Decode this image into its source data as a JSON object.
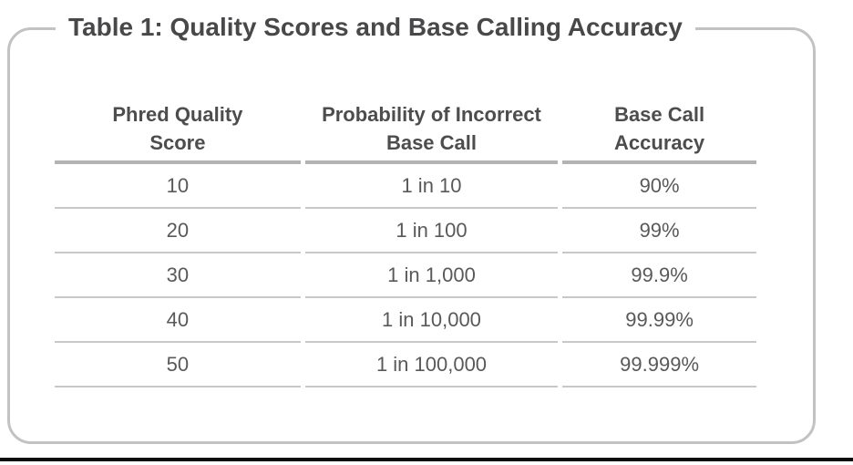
{
  "title": "Table 1: Quality Scores and Base Calling Accuracy",
  "chart_data": {
    "type": "table",
    "title": "Table 1: Quality Scores and Base Calling Accuracy",
    "columns": [
      "Phred Quality Score",
      "Probability of Incorrect Base Call",
      "Base Call Accuracy"
    ],
    "rows": [
      [
        "10",
        "1 in 10",
        "90%"
      ],
      [
        "20",
        "1 in 100",
        "99%"
      ],
      [
        "30",
        "1 in 1,000",
        "99.9%"
      ],
      [
        "40",
        "1 in 10,000",
        "99.99%"
      ],
      [
        "50",
        "1 in 100,000",
        "99.999%"
      ]
    ],
    "layout": {
      "text_alignment": "center",
      "header_divider": "thick gray line",
      "row_dividers": "thin gray lines",
      "frame": "rounded light-gray border with title breaking the top edge"
    }
  },
  "colors": {
    "background": "#ffffff",
    "title_text": "#48484a",
    "header_text": "#4d4d4f",
    "body_text": "#58595b",
    "frame_border": "#c2c2c5",
    "header_divider": "#b3b3b6",
    "row_divider": "#c8c8cb",
    "bottom_rule": "#0b0b0b"
  }
}
